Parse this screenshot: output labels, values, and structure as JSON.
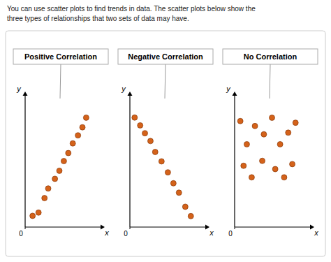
{
  "title": "You can use scatter plots to find trends in data. The scatter plots below show the",
  "subtitle": "three types of relationships that two sets of data may have.",
  "chart_data": [
    {
      "type": "scatter",
      "title": "Positive Correlation",
      "xlabel": "x",
      "ylabel": "y",
      "x": [
        0.5,
        0.9,
        1.3,
        1.55,
        2.0,
        2.3,
        2.6,
        2.9,
        3.2,
        3.55,
        3.85,
        4.1
      ],
      "values": [
        0.35,
        0.45,
        0.9,
        1.2,
        1.5,
        1.75,
        2.05,
        2.3,
        2.6,
        2.85,
        3.1,
        3.4
      ],
      "color": "#d4621a",
      "marker": "circle",
      "xlim": [
        0,
        4.692
      ],
      "ylim": [
        0,
        3.908
      ],
      "xticks": [
        0
      ],
      "tick_labels": "x",
      "grid": false
    },
    {
      "type": "scatter",
      "title": "Negative Correlation",
      "xlabel": "x",
      "ylabel": "y",
      "x": [
        0.3,
        0.65,
        0.95,
        1.3,
        1.6,
        2.0,
        2.4,
        2.75,
        3.1,
        3.5,
        3.85
      ],
      "values": [
        3.5,
        3.25,
        3.0,
        2.75,
        2.4,
        2.1,
        1.75,
        1.4,
        1.1,
        0.65,
        0.35
      ],
      "color": "#d4621a",
      "marker": "circle",
      "xlim": [
        0,
        4.412
      ],
      "ylim": [
        0,
        4.02
      ],
      "xticks": [
        0
      ],
      "tick_labels": "x",
      "grid": false
    },
    {
      "type": "scatter",
      "title": "No Correlation",
      "xlabel": "x",
      "ylabel": "y",
      "x": [
        0.35,
        0.75,
        1.25,
        1.8,
        2.3,
        2.8,
        3.3,
        3.75,
        0.55,
        1.05,
        1.7,
        2.5,
        3.05,
        3.55
      ],
      "values": [
        3.2,
        2.5,
        3.05,
        2.8,
        3.3,
        2.5,
        2.85,
        3.15,
        1.85,
        1.5,
        2.0,
        1.75,
        1.5,
        1.9
      ],
      "color": "#d4621a",
      "marker": "circle",
      "xlim": [
        0,
        4.3
      ],
      "ylim": [
        0,
        3.796
      ],
      "xticks": [
        0
      ],
      "tick_labels": "x",
      "grid": false
    }
  ]
}
